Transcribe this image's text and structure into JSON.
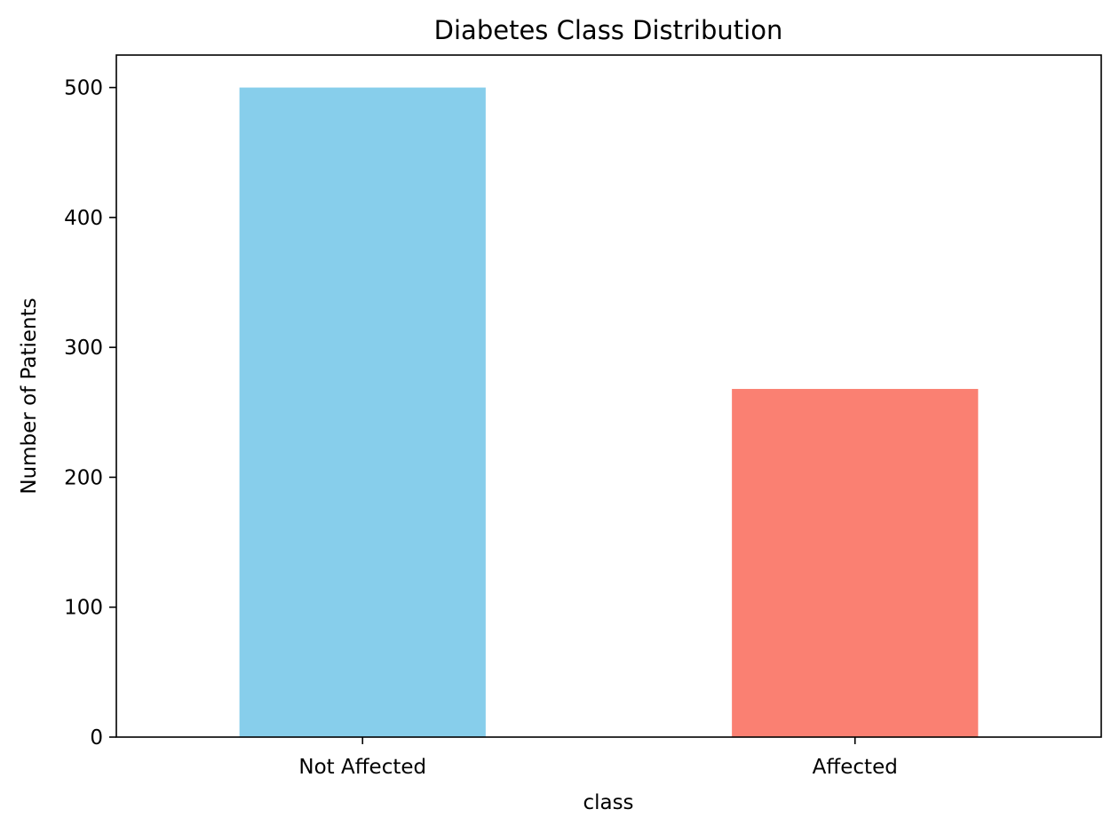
{
  "chart_data": {
    "type": "bar",
    "title": "Diabetes Class Distribution",
    "xlabel": "class",
    "ylabel": "Number of Patients",
    "categories": [
      "Not Affected",
      "Affected"
    ],
    "values": [
      500,
      268
    ],
    "bar_colors": [
      "#87ceeb",
      "#fa8072"
    ],
    "ylim": [
      0,
      525
    ],
    "yticks": [
      0,
      100,
      200,
      300,
      400,
      500
    ],
    "grid": false,
    "legend": false
  }
}
